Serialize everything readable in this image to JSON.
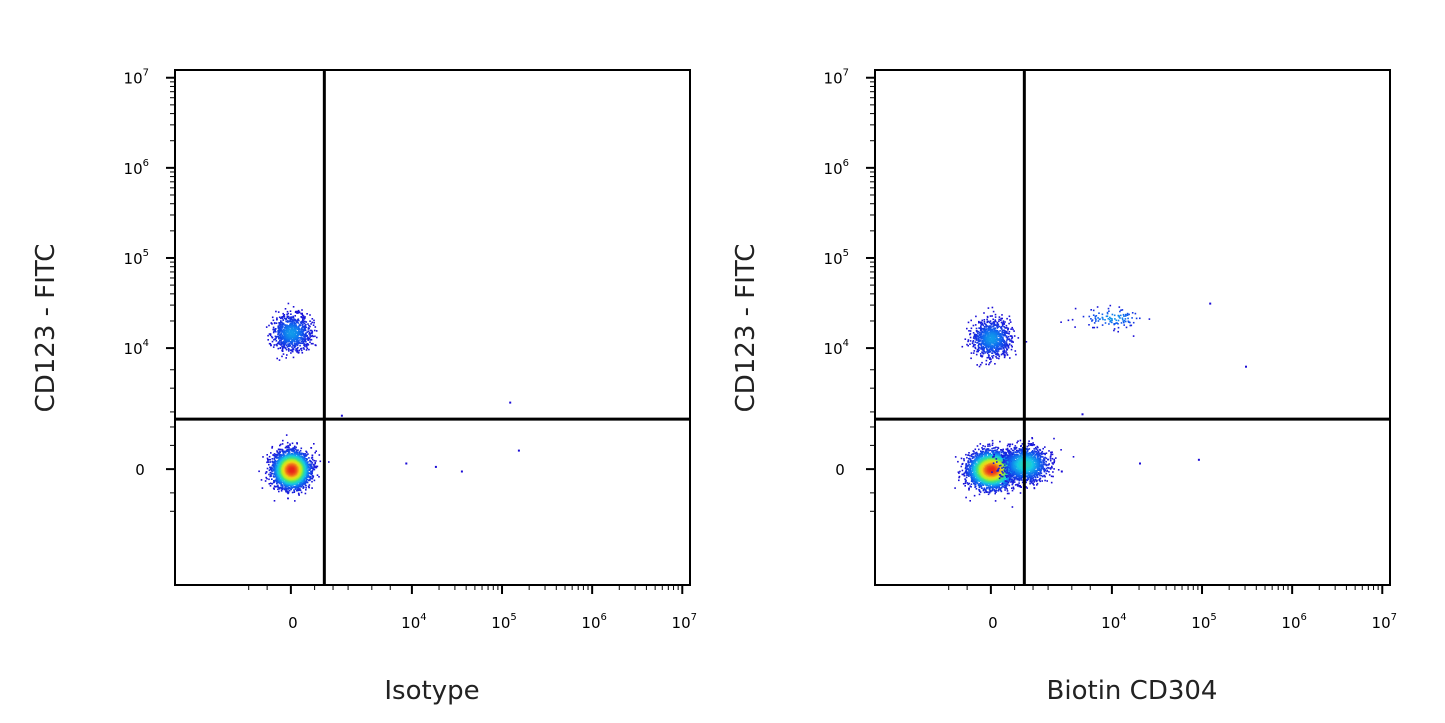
{
  "chart_data": [
    {
      "type": "scatter",
      "subtype": "flow-cytometry-density-dot-plot",
      "xlabel": "Isotype",
      "ylabel": "CD123 - FITC",
      "x_scale": "biexponential",
      "y_scale": "biexponential",
      "xlim": [
        "below 0",
        10000000
      ],
      "ylim": [
        "below 0",
        10000000
      ],
      "x_ticks": [
        {
          "value": 0,
          "base": "0",
          "exp": ""
        },
        {
          "value": 10000,
          "base": "10",
          "exp": "4"
        },
        {
          "value": 100000,
          "base": "10",
          "exp": "5"
        },
        {
          "value": 1000000,
          "base": "10",
          "exp": "6"
        },
        {
          "value": 10000000,
          "base": "10",
          "exp": "7"
        }
      ],
      "y_ticks": [
        {
          "value": 0,
          "base": "0",
          "exp": ""
        },
        {
          "value": 10000,
          "base": "10",
          "exp": "4"
        },
        {
          "value": 100000,
          "base": "10",
          "exp": "5"
        },
        {
          "value": 1000000,
          "base": "10",
          "exp": "6"
        },
        {
          "value": 10000000,
          "base": "10",
          "exp": "7"
        }
      ],
      "quadrant_gate": {
        "x": 1500,
        "y": 2500
      },
      "populations": [
        {
          "x_center": 0,
          "y_center": 0,
          "x_spread": 700,
          "y_spread": 700,
          "relative_size": "major",
          "peak_color": "#e8231c"
        },
        {
          "x_center": 0,
          "y_center": 15000,
          "x_spread": 800,
          "y_spread": 6000,
          "relative_size": "minor",
          "peak_color": "#2a3bd8"
        }
      ],
      "outliers": [
        {
          "x": 9000,
          "y": 250
        },
        {
          "x": 18000,
          "y": 120
        },
        {
          "x": 35000,
          "y": -50
        },
        {
          "x": 150000,
          "y": 800
        },
        {
          "x": 120000,
          "y": 3800
        },
        {
          "x": 2500,
          "y": 2800
        }
      ],
      "colormap": [
        "#1a0bd6",
        "#0f63f0",
        "#14c8e6",
        "#3ee08a",
        "#b8ef25",
        "#f3d41a",
        "#f0741a",
        "#e8231c"
      ],
      "grid": false,
      "legend": "none"
    },
    {
      "type": "scatter",
      "subtype": "flow-cytometry-density-dot-plot",
      "xlabel": "Biotin CD304",
      "ylabel": "CD123 - FITC",
      "x_scale": "biexponential",
      "y_scale": "biexponential",
      "xlim": [
        "below 0",
        10000000
      ],
      "ylim": [
        "below 0",
        10000000
      ],
      "x_ticks": [
        {
          "value": 0,
          "base": "0",
          "exp": ""
        },
        {
          "value": 10000,
          "base": "10",
          "exp": "4"
        },
        {
          "value": 100000,
          "base": "10",
          "exp": "5"
        },
        {
          "value": 1000000,
          "base": "10",
          "exp": "6"
        },
        {
          "value": 10000000,
          "base": "10",
          "exp": "7"
        }
      ],
      "y_ticks": [
        {
          "value": 0,
          "base": "0",
          "exp": ""
        },
        {
          "value": 10000,
          "base": "10",
          "exp": "4"
        },
        {
          "value": 100000,
          "base": "10",
          "exp": "5"
        },
        {
          "value": 1000000,
          "base": "10",
          "exp": "6"
        },
        {
          "value": 10000000,
          "base": "10",
          "exp": "7"
        }
      ],
      "quadrant_gate": {
        "x": 1500,
        "y": 2500
      },
      "populations": [
        {
          "x_center": 0,
          "y_center": 0,
          "x_spread": 900,
          "y_spread": 700,
          "relative_size": "major",
          "peak_color": "#e8231c"
        },
        {
          "x_center": 1500,
          "y_center": 200,
          "x_spread": 1200,
          "y_spread": 700,
          "relative_size": "shoulder",
          "peak_color": "#14c8e6"
        },
        {
          "x_center": 0,
          "y_center": 13000,
          "x_spread": 800,
          "y_spread": 5000,
          "relative_size": "minor",
          "peak_color": "#2a3bd8"
        },
        {
          "x_center": 10000,
          "y_center": 22000,
          "x_spread": 6000,
          "y_spread": 6000,
          "relative_size": "small",
          "peak_color": "#1a0bd6"
        }
      ],
      "outliers": [
        {
          "x": 120000,
          "y": 32000
        },
        {
          "x": 300000,
          "y": 7500
        },
        {
          "x": 20000,
          "y": 250
        },
        {
          "x": 90000,
          "y": 400
        },
        {
          "x": 4000,
          "y": -50
        },
        {
          "x": 6000,
          "y": 2900
        }
      ],
      "colormap": [
        "#1a0bd6",
        "#0f63f0",
        "#14c8e6",
        "#3ee08a",
        "#b8ef25",
        "#f3d41a",
        "#f0741a",
        "#e8231c"
      ],
      "grid": false,
      "legend": "none"
    }
  ]
}
